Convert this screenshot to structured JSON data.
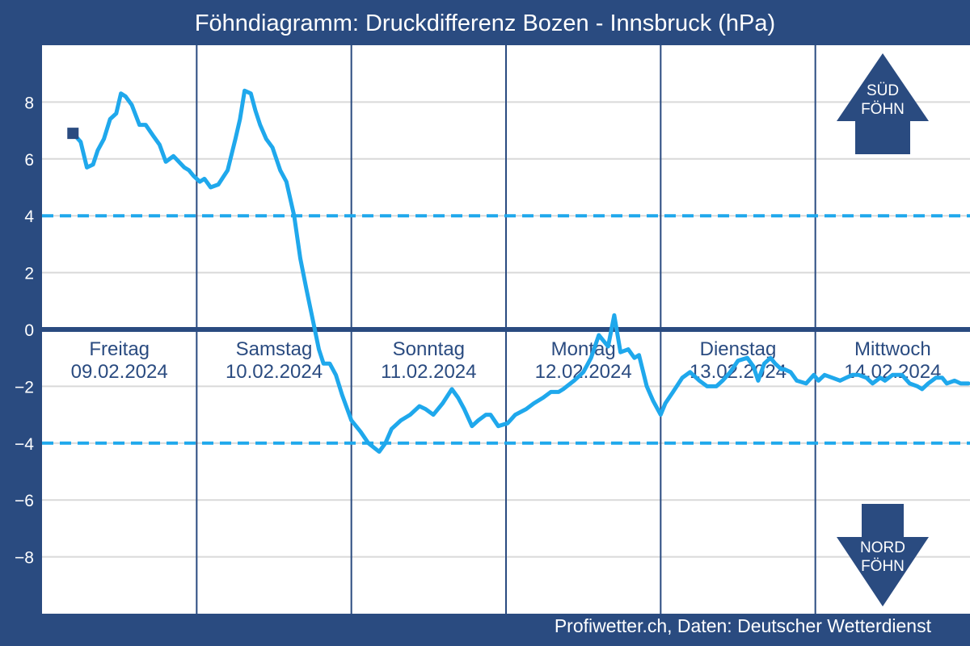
{
  "title": "Föhndiagramm: Druckdifferenz Bozen - Innsbruck (hPa)",
  "credit": "Profiwetter.ch, Daten: Deutscher Wetterdienst",
  "indicators": {
    "sued_line1": "SÜD",
    "sued_line2": "FÖHN",
    "nord_line1": "NORD",
    "nord_line2": "FÖHN"
  },
  "colors": {
    "frame": "#2a4b80",
    "plot_bg": "#ffffff",
    "grid": "#d9d9d9",
    "series": "#1fa8ec",
    "threshold": "#1fa8ec",
    "zero_line": "#2a4b80",
    "day_label": "#2a4b80"
  },
  "chart_data": {
    "type": "line",
    "title": "Föhndiagramm: Druckdifferenz Bozen - Innsbruck (hPa)",
    "xlabel": "",
    "ylabel": "",
    "ylim": [
      -10,
      10
    ],
    "xlim": [
      0,
      6
    ],
    "grid": true,
    "yticks": [
      8,
      6,
      4,
      2,
      0,
      -2,
      -4,
      -6,
      -8
    ],
    "ytick_labels": [
      "8",
      "6",
      "4",
      "2",
      "0",
      "−2",
      "−4",
      "−6",
      "−8"
    ],
    "thresholds": [
      4,
      -4
    ],
    "day_labels": [
      {
        "day": "Freitag",
        "date": "09.02.2024"
      },
      {
        "day": "Samstag",
        "date": "10.02.2024"
      },
      {
        "day": "Sonntag",
        "date": "11.02.2024"
      },
      {
        "day": "Montag",
        "date": "12.02.2024"
      },
      {
        "day": "Dienstag",
        "date": "13.02.2024"
      },
      {
        "day": "Mittwoch",
        "date": "14.02.2024"
      }
    ],
    "x": [
      0.2,
      0.25,
      0.29,
      0.33,
      0.36,
      0.4,
      0.44,
      0.48,
      0.51,
      0.54,
      0.58,
      0.63,
      0.67,
      0.72,
      0.76,
      0.8,
      0.85,
      0.92,
      0.95,
      0.98,
      1.02,
      1.05,
      1.09,
      1.14,
      1.2,
      1.25,
      1.28,
      1.31,
      1.35,
      1.38,
      1.41,
      1.45,
      1.49,
      1.54,
      1.58,
      1.63,
      1.67,
      1.71,
      1.76,
      1.79,
      1.82,
      1.86,
      1.9,
      1.94,
      2.0,
      2.06,
      2.11,
      2.18,
      2.22,
      2.26,
      2.32,
      2.38,
      2.44,
      2.48,
      2.53,
      2.59,
      2.65,
      2.69,
      2.73,
      2.78,
      2.82,
      2.87,
      2.9,
      2.95,
      3.01,
      3.06,
      3.13,
      3.18,
      3.24,
      3.29,
      3.34,
      3.37,
      3.44,
      3.5,
      3.55,
      3.6,
      3.66,
      3.7,
      3.74,
      3.79,
      3.83,
      3.86,
      3.91,
      3.95,
      4.0,
      4.03,
      4.08,
      4.14,
      4.19,
      4.25,
      4.3,
      4.36,
      4.4,
      4.45,
      4.5,
      4.56,
      4.6,
      4.63,
      4.67,
      4.71,
      4.74,
      4.78,
      4.8,
      4.84,
      4.88,
      4.94,
      4.99,
      5.02,
      5.06,
      5.11,
      5.16,
      5.2,
      5.24,
      5.28,
      5.33,
      5.37,
      5.42,
      5.45,
      5.5,
      5.56,
      5.61,
      5.66,
      5.69,
      5.73,
      5.78,
      5.82,
      5.85,
      5.9,
      5.94,
      5.99
    ],
    "y": [
      6.9,
      6.6,
      5.7,
      5.8,
      6.3,
      6.7,
      7.4,
      7.6,
      8.3,
      8.2,
      7.9,
      7.2,
      7.2,
      6.8,
      6.5,
      5.9,
      6.1,
      5.7,
      5.6,
      5.4,
      5.2,
      5.3,
      5.0,
      5.1,
      5.6,
      6.7,
      7.4,
      8.4,
      8.3,
      7.7,
      7.2,
      6.7,
      6.4,
      5.6,
      5.2,
      4.0,
      2.5,
      1.4,
      0.1,
      -0.7,
      -1.2,
      -1.2,
      -1.6,
      -2.3,
      -3.2,
      -3.6,
      -4.0,
      -4.3,
      -4.0,
      -3.5,
      -3.2,
      -3.0,
      -2.7,
      -2.8,
      -3.0,
      -2.6,
      -2.1,
      -2.4,
      -2.8,
      -3.4,
      -3.2,
      -3.0,
      -3.0,
      -3.4,
      -3.3,
      -3.0,
      -2.8,
      -2.6,
      -2.4,
      -2.2,
      -2.2,
      -2.1,
      -1.8,
      -1.5,
      -1.0,
      -0.2,
      -0.6,
      0.5,
      -0.8,
      -0.7,
      -1.0,
      -0.9,
      -2.0,
      -2.5,
      -3.0,
      -2.6,
      -2.2,
      -1.7,
      -1.5,
      -1.8,
      -2.0,
      -2.0,
      -1.8,
      -1.5,
      -1.1,
      -1.0,
      -1.3,
      -1.8,
      -1.2,
      -1.0,
      -1.2,
      -1.4,
      -1.4,
      -1.5,
      -1.8,
      -1.9,
      -1.6,
      -1.8,
      -1.6,
      -1.7,
      -1.8,
      -1.7,
      -1.6,
      -1.6,
      -1.7,
      -1.9,
      -1.7,
      -1.8,
      -1.6,
      -1.6,
      -1.9,
      -2.0,
      -2.1,
      -1.9,
      -1.7,
      -1.7,
      -1.9,
      -1.8,
      -1.9,
      -1.9
    ],
    "start_marker": {
      "x": 0.2,
      "y": 6.9
    }
  }
}
